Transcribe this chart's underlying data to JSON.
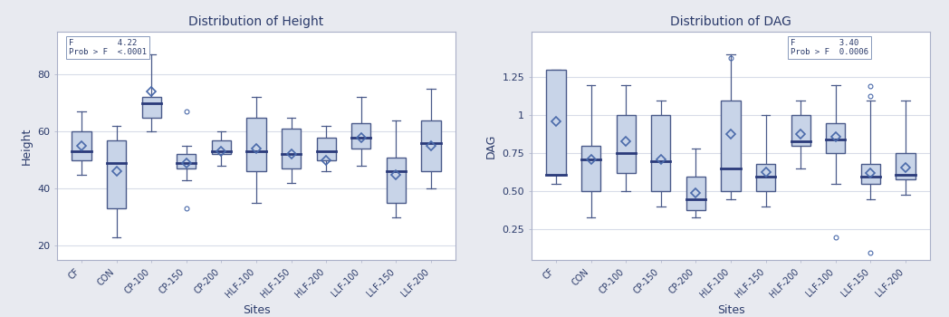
{
  "title_left": "Distribution of Height",
  "title_right": "Distribution of DAG",
  "xlabel": "Sites",
  "ylabel_left": "Height",
  "ylabel_right": "DAG",
  "categories": [
    "CF",
    "CON",
    "CP-100",
    "CP-150",
    "CP-200",
    "HLF-100",
    "HLF-150",
    "HLF-200",
    "LLF-100",
    "LLF-150",
    "LLF-200"
  ],
  "height_data": {
    "medians": [
      53,
      49,
      70,
      49,
      53,
      53,
      52,
      53,
      58,
      46,
      56
    ],
    "q1": [
      50,
      33,
      65,
      47,
      52,
      46,
      47,
      50,
      54,
      35,
      46
    ],
    "q3": [
      60,
      57,
      72,
      52,
      57,
      65,
      61,
      58,
      63,
      51,
      64
    ],
    "whislo": [
      45,
      23,
      60,
      43,
      48,
      35,
      42,
      46,
      48,
      30,
      40
    ],
    "whishi": [
      67,
      62,
      87,
      55,
      60,
      72,
      65,
      62,
      72,
      64,
      75
    ],
    "means": [
      55,
      46,
      74,
      49,
      53,
      54,
      52,
      50,
      58,
      45,
      55
    ],
    "outliers": [
      [],
      [],
      [],
      [
        33,
        67
      ],
      [],
      [],
      [],
      [],
      [],
      [],
      []
    ]
  },
  "dag_data": {
    "medians": [
      0.61,
      0.71,
      0.75,
      0.7,
      0.45,
      0.65,
      0.6,
      0.83,
      0.84,
      0.6,
      0.61
    ],
    "q1": [
      0.61,
      0.5,
      0.62,
      0.5,
      0.38,
      0.5,
      0.5,
      0.8,
      0.75,
      0.55,
      0.58
    ],
    "q3": [
      1.3,
      0.8,
      1.0,
      1.0,
      0.6,
      1.1,
      0.68,
      1.0,
      0.95,
      0.68,
      0.75
    ],
    "whislo": [
      0.55,
      0.33,
      0.5,
      0.4,
      0.33,
      0.45,
      0.4,
      0.65,
      0.55,
      0.45,
      0.48
    ],
    "whishi": [
      1.3,
      1.2,
      1.2,
      1.1,
      0.78,
      1.4,
      1.0,
      1.1,
      1.2,
      1.1,
      1.1
    ],
    "means": [
      0.96,
      0.71,
      0.83,
      0.71,
      0.49,
      0.88,
      0.63,
      0.88,
      0.86,
      0.62,
      0.66
    ],
    "outliers": [
      [],
      [],
      [],
      [],
      [],
      [
        1.38
      ],
      [],
      [],
      [
        0.2
      ],
      [
        1.19,
        1.13,
        0.1
      ],
      []
    ]
  },
  "box_facecolor": "#c8d4e8",
  "box_edgecolor": "#4a5a8a",
  "median_color": "#2a3a7a",
  "mean_marker_color": "#4a6aaa",
  "whisker_color": "#4a5a8a",
  "outlier_color": "#4a6aaa",
  "grid_color": "#d8dce8",
  "bg_color": "#ffffff",
  "fig_bg_color": "#e8eaf0",
  "text_color": "#2a3a6a",
  "stat_text_left": "F         4.22\nProb > F  <.0001",
  "stat_text_right": "F         3.40\nProb > F  0.0006",
  "ylim_left": [
    15,
    95
  ],
  "ylim_right": [
    0.05,
    1.55
  ],
  "yticks_left": [
    20,
    40,
    60,
    80
  ],
  "yticks_right": [
    0.25,
    0.5,
    0.75,
    1.0,
    1.25
  ]
}
